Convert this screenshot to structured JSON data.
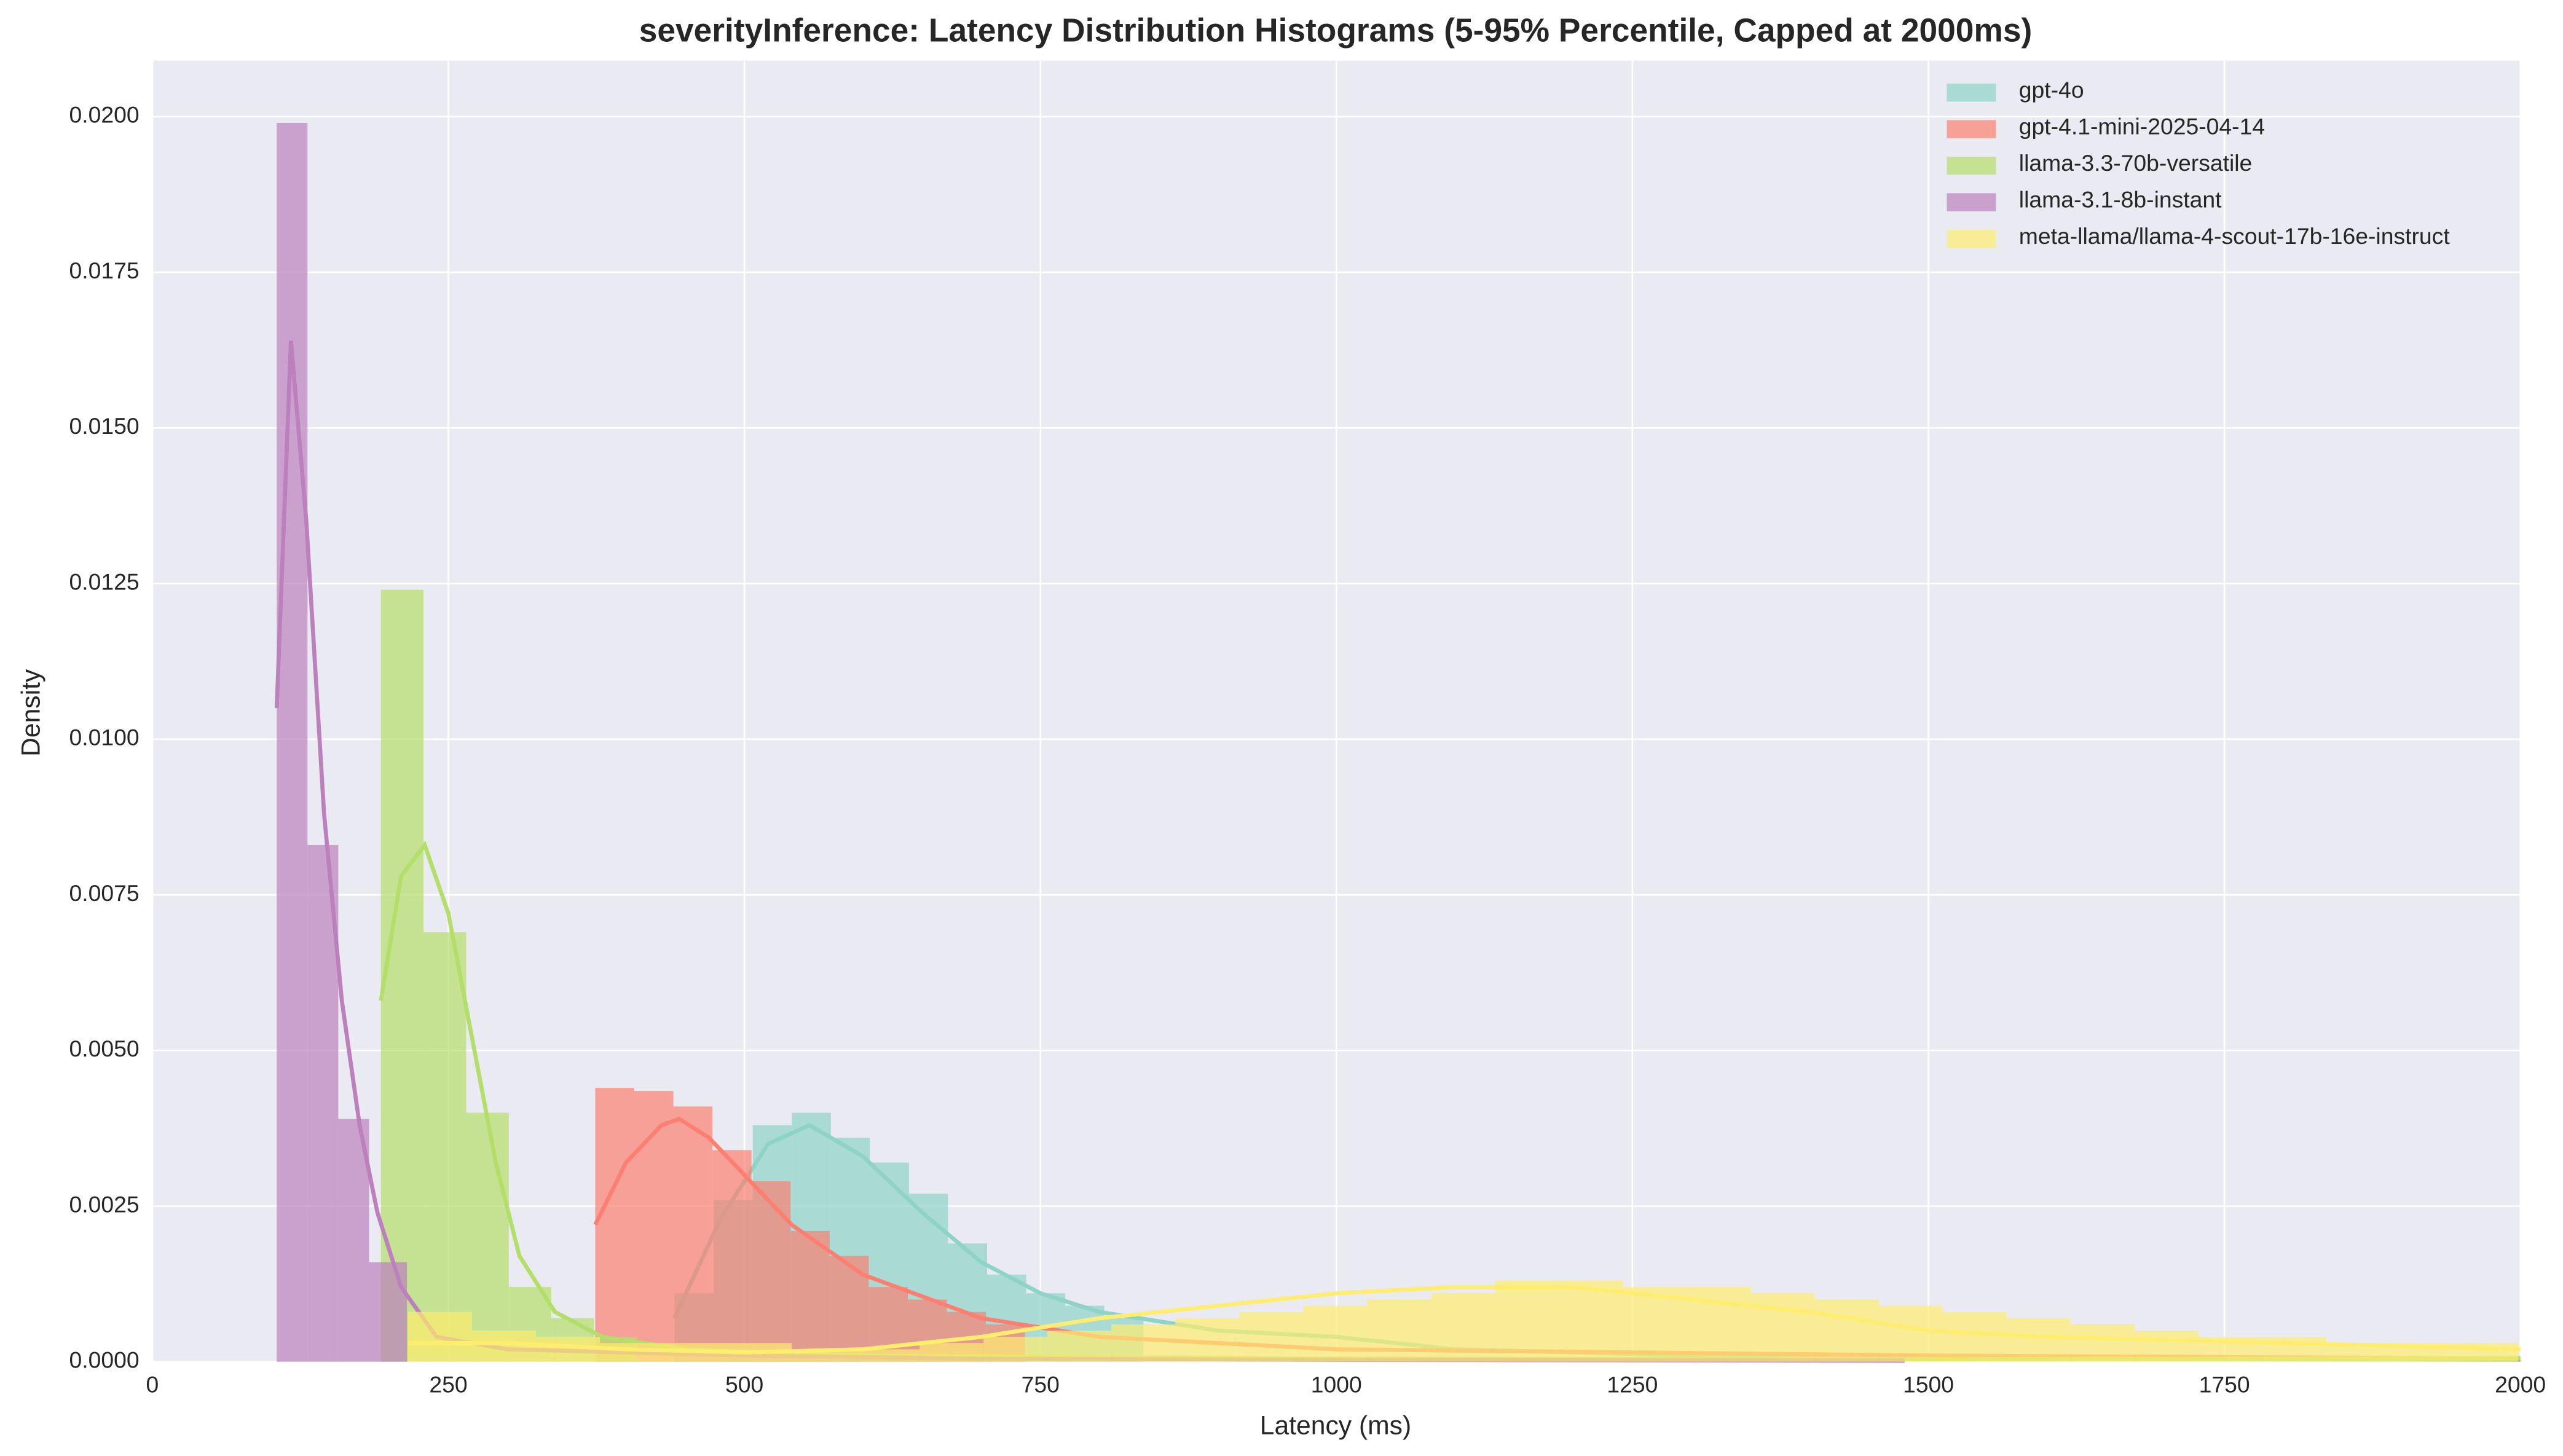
{
  "chart_data": {
    "type": "histogram",
    "title": "severityInference: Latency Distribution Histograms (5-95% Percentile, Capped at 2000ms)",
    "x_label": "Latency (ms)",
    "y_label": "Density",
    "xlim": [
      0,
      2000
    ],
    "ylim": [
      0,
      0.0209
    ],
    "xticks": [
      0,
      250,
      500,
      750,
      1000,
      1250,
      1500,
      1750,
      2000
    ],
    "yticks": [
      {
        "value": 0,
        "label": "0.0000"
      },
      0.0025,
      {
        "value": 0.005,
        "label": "0.0050"
      },
      0.0075,
      {
        "value": 0.01,
        "label": "0.0100"
      },
      0.0125,
      {
        "value": 0.015,
        "label": "0.0150"
      },
      0.0175,
      {
        "value": 0.02,
        "label": "0.0200"
      }
    ],
    "grid": true,
    "legend": "upper right",
    "series": [
      {
        "name": "gpt-4o",
        "color": "#8dd3c7",
        "bins": [
          441,
          474,
          507,
          540,
          573,
          606,
          639,
          672,
          705,
          738,
          771,
          804,
          837
        ],
        "values": [
          0.0011,
          0.0026,
          0.0038,
          0.004,
          0.0036,
          0.0032,
          0.0027,
          0.0019,
          0.0014,
          0.0011,
          0.0009,
          0.0007
        ],
        "kde": {
          "x": [
            441,
            480,
            520,
            555,
            600,
            650,
            700,
            750,
            800,
            900,
            1000,
            1100,
            1300,
            1600,
            2000
          ],
          "y": [
            0.0007,
            0.0023,
            0.0035,
            0.0038,
            0.0033,
            0.0024,
            0.0016,
            0.0011,
            0.0008,
            0.0005,
            0.0004,
            0.0002,
            0.0001,
            5e-05,
            3e-05
          ]
        }
      },
      {
        "name": "gpt-4.1-mini-2025-04-14",
        "color": "#fb8072",
        "bins": [
          374,
          407,
          440,
          473,
          506,
          539,
          572,
          605,
          638,
          671,
          704,
          737
        ],
        "values": [
          0.0044,
          0.00435,
          0.0041,
          0.0034,
          0.0029,
          0.0021,
          0.0017,
          0.0012,
          0.001,
          0.0008,
          0.0006
        ],
        "kde": {
          "x": [
            374,
            400,
            430,
            445,
            470,
            500,
            540,
            600,
            700,
            800,
            1000,
            1500,
            2000
          ],
          "y": [
            0.0022,
            0.0032,
            0.0038,
            0.0039,
            0.0036,
            0.003,
            0.0022,
            0.0014,
            0.0007,
            0.0004,
            0.0002,
            0.0001,
            5e-05
          ]
        }
      },
      {
        "name": "llama-3.3-70b-versatile",
        "color": "#b3de69",
        "bins": [
          193,
          229,
          265,
          301,
          337,
          373,
          409
        ],
        "values": [
          0.0124,
          0.0069,
          0.004,
          0.0012,
          0.0007,
          0.0004
        ],
        "kde": {
          "x": [
            193,
            210,
            230,
            250,
            270,
            290,
            310,
            340,
            380,
            450,
            600,
            1000,
            1500,
            2000
          ],
          "y": [
            0.0058,
            0.0078,
            0.0083,
            0.0072,
            0.0052,
            0.0032,
            0.0017,
            0.0008,
            0.0004,
            0.0002,
            0.0001,
            5e-05,
            4e-05,
            6e-05
          ]
        }
      },
      {
        "name": "llama-3.1-8b-instant",
        "color": "#bc80bd",
        "bins": [
          105,
          131,
          157,
          183,
          215
        ],
        "values": [
          0.0199,
          0.0083,
          0.0039,
          0.0016
        ],
        "kde": {
          "x": [
            105,
            117,
            130,
            145,
            160,
            175,
            190,
            210,
            240,
            300,
            400,
            500,
            700,
            1000,
            1480
          ],
          "y": [
            0.0105,
            0.0164,
            0.0135,
            0.0088,
            0.0058,
            0.0038,
            0.0024,
            0.0012,
            0.0004,
            0.0002,
            0.00015,
            0.0001,
            5e-05,
            3e-05,
            2e-05
          ]
        }
      },
      {
        "name": "meta-llama/llama-4-scout-17b-16e-instruct",
        "color": "#ffed6f",
        "bins": [
          216,
          270,
          324,
          378,
          432,
          486,
          540,
          594,
          648,
          702,
          756,
          810,
          864,
          918,
          972,
          1026,
          1080,
          1134,
          1188,
          1242,
          1296,
          1350,
          1404,
          1458,
          1512,
          1566,
          1620,
          1674,
          1728,
          1782,
          1836,
          1890,
          1944,
          1998
        ],
        "values": [
          0.0008,
          0.0005,
          0.0004,
          0.0003,
          0.0003,
          0.0003,
          0.0002,
          0.0002,
          0.0003,
          0.0004,
          0.0005,
          0.0006,
          0.0007,
          0.0008,
          0.0009,
          0.001,
          0.0011,
          0.0013,
          0.0013,
          0.0012,
          0.0012,
          0.0011,
          0.001,
          0.0009,
          0.0008,
          0.0007,
          0.0006,
          0.0005,
          0.0004,
          0.0004,
          0.0003,
          0.0003,
          0.0003
        ],
        "kde": {
          "x": [
            216,
            300,
            400,
            500,
            600,
            700,
            800,
            900,
            1000,
            1100,
            1200,
            1300,
            1400,
            1500,
            1600,
            1800,
            2000
          ],
          "y": [
            0.0003,
            0.0003,
            0.0002,
            0.00015,
            0.0002,
            0.0004,
            0.0007,
            0.0009,
            0.0011,
            0.0012,
            0.0012,
            0.001,
            0.0008,
            0.0005,
            0.0004,
            0.0003,
            0.0002
          ]
        }
      }
    ]
  }
}
